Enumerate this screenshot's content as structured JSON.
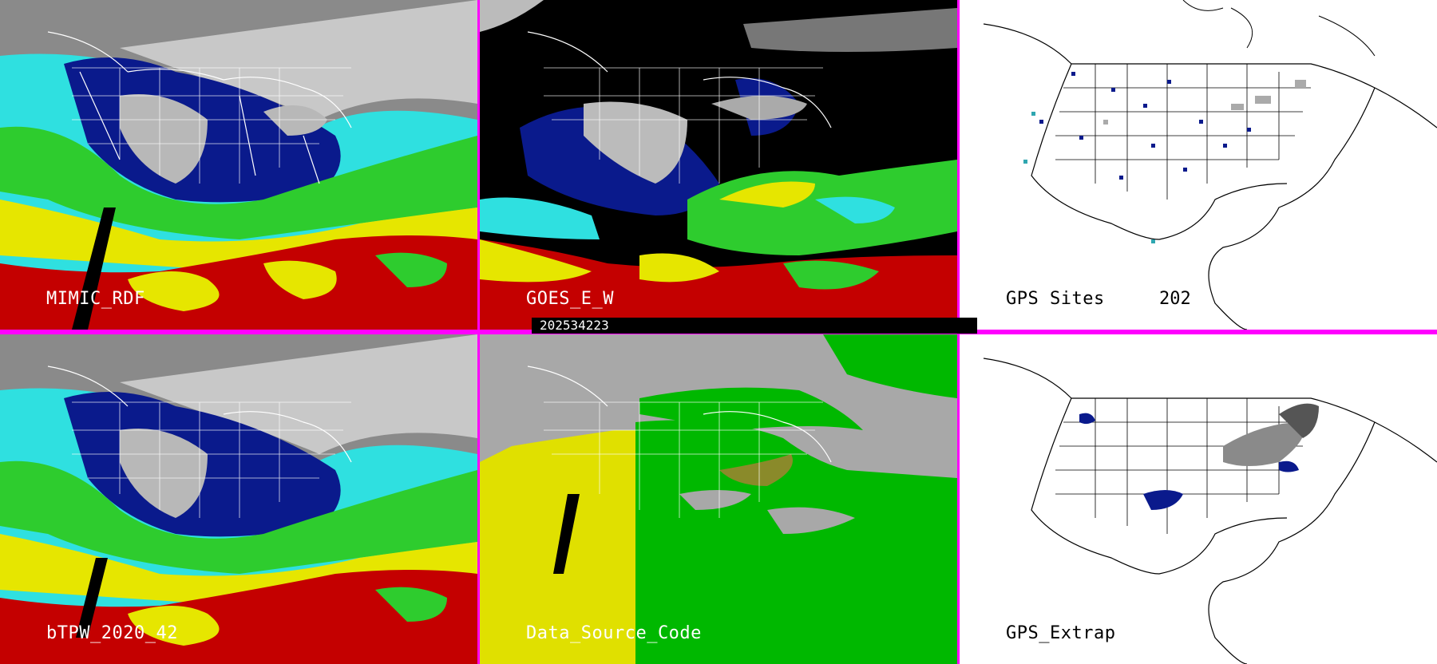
{
  "panels": [
    {
      "id": "p1",
      "label": "MIMIC_RDF",
      "palette": "tpw",
      "label_color": "#ffffff"
    },
    {
      "id": "p2",
      "label": "GOES_E_W",
      "palette": "goes",
      "label_color": "#ffffff"
    },
    {
      "id": "p3",
      "label": "GPS Sites",
      "count": "202",
      "palette": "gps",
      "label_color": "#000000"
    },
    {
      "id": "p4",
      "label": "bTPW_2020_42",
      "palette": "tpw",
      "label_color": "#ffffff"
    },
    {
      "id": "p5",
      "label": "Data_Source_Code",
      "palette": "dsc",
      "label_color": "#ffffff"
    },
    {
      "id": "p6",
      "label": "GPS_Extrap",
      "palette": "gps",
      "label_color": "#000000"
    }
  ],
  "timestamp": "202534223",
  "colors": {
    "divider": "#ff00ff",
    "tpw_dry": "#b0b0b0",
    "tpw_blue": "#0a1a8c",
    "tpw_cyan": "#2fe0e0",
    "tpw_green": "#2ecc2e",
    "tpw_yellow": "#e6e600",
    "tpw_red": "#c40000",
    "dsc_gray": "#a8a8a8",
    "dsc_yellow": "#e0e000",
    "dsc_green": "#00b800"
  }
}
